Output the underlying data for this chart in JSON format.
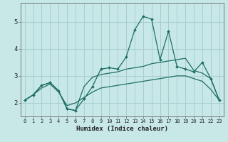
{
  "xlabel": "Humidex (Indice chaleur)",
  "xlim": [
    -0.5,
    23.5
  ],
  "ylim": [
    1.5,
    5.7
  ],
  "yticks": [
    2,
    3,
    4,
    5
  ],
  "bg_color": "#c8e8e8",
  "grid_color": "#a8cece",
  "line_color": "#1e6e64",
  "main_line": {
    "x": [
      0,
      1,
      2,
      3,
      4,
      5,
      6,
      7,
      8,
      9,
      10,
      11,
      12,
      13,
      14,
      15,
      16,
      17,
      18,
      19,
      20,
      21,
      22,
      23
    ],
    "y": [
      2.1,
      2.3,
      2.65,
      2.75,
      2.45,
      1.78,
      1.72,
      2.15,
      2.6,
      3.25,
      3.3,
      3.25,
      3.7,
      4.7,
      5.2,
      5.1,
      3.6,
      4.65,
      3.35,
      3.25,
      3.15,
      3.5,
      2.9,
      2.1
    ]
  },
  "upper_trend": {
    "x": [
      0,
      1,
      2,
      3,
      4,
      5,
      6,
      7,
      8,
      9,
      10,
      11,
      12,
      13,
      14,
      15,
      16,
      17,
      18,
      19,
      20,
      21,
      22,
      23
    ],
    "y": [
      2.1,
      2.3,
      2.65,
      2.75,
      2.45,
      1.78,
      1.72,
      2.6,
      2.95,
      3.05,
      3.1,
      3.15,
      3.25,
      3.3,
      3.35,
      3.45,
      3.5,
      3.55,
      3.6,
      3.65,
      3.2,
      3.1,
      2.9,
      2.1
    ]
  },
  "lower_trend": {
    "x": [
      0,
      1,
      2,
      3,
      4,
      5,
      6,
      7,
      8,
      9,
      10,
      11,
      12,
      13,
      14,
      15,
      16,
      17,
      18,
      19,
      20,
      21,
      22,
      23
    ],
    "y": [
      2.1,
      2.3,
      2.55,
      2.7,
      2.4,
      1.9,
      2.0,
      2.2,
      2.4,
      2.55,
      2.6,
      2.65,
      2.7,
      2.75,
      2.8,
      2.85,
      2.9,
      2.95,
      3.0,
      3.0,
      2.9,
      2.8,
      2.5,
      2.1
    ]
  }
}
